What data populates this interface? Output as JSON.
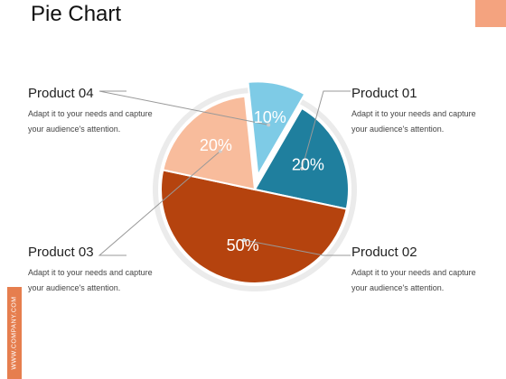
{
  "slide": {
    "title": "Pie Chart",
    "footer_text": "WWW.COMPANY.COM"
  },
  "colors": {
    "accent": "#f4a37f",
    "footer_bar": "#e67e4e",
    "ring": "#ebebeb"
  },
  "products": {
    "p1": {
      "name": "Product 01",
      "desc_line1": "Adapt it to your needs and capture",
      "desc_line2": "your audience's attention."
    },
    "p2": {
      "name": "Product 02",
      "desc_line1": "Adapt it to your needs and capture",
      "desc_line2": "your audience's attention."
    },
    "p3": {
      "name": "Product 03",
      "desc_line1": "Adapt it to your needs and capture",
      "desc_line2": "your audience's attention."
    },
    "p4": {
      "name": "Product 04",
      "desc_line1": "Adapt it to your needs and capture",
      "desc_line2": "your audience's attention."
    }
  },
  "chart_data": {
    "type": "pie",
    "title": "",
    "slices": [
      {
        "product": "Product 01",
        "value": 20,
        "label": "20%",
        "color": "#1f7f9e",
        "exploded": false
      },
      {
        "product": "Product 02",
        "value": 50,
        "label": "50%",
        "color": "#b5430e",
        "exploded": false
      },
      {
        "product": "Product 03",
        "value": 20,
        "label": "20%",
        "color": "#f8bc9c",
        "exploded": false
      },
      {
        "product": "Product 04",
        "value": 10,
        "label": "10%",
        "color": "#7ecbe6",
        "exploded": true
      }
    ]
  }
}
